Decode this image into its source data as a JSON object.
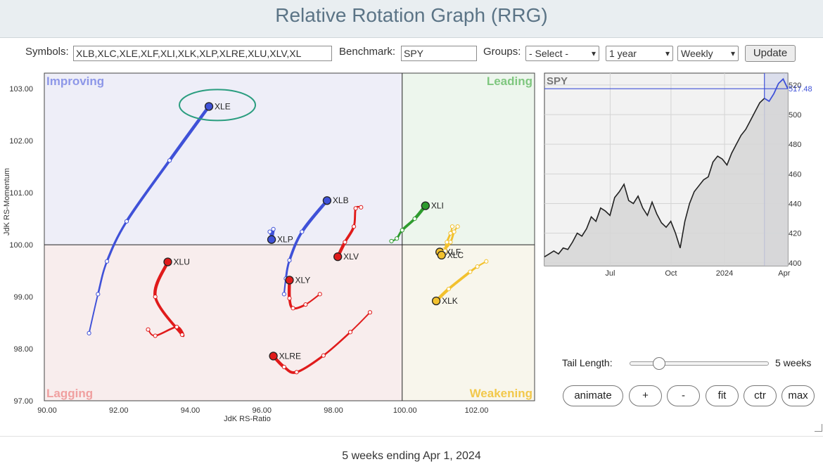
{
  "title": "Relative Rotation Graph (RRG)",
  "controls": {
    "symbols_label": "Symbols:",
    "symbols_value": "XLB,XLC,XLE,XLF,XLI,XLK,XLP,XLRE,XLU,XLV,XL",
    "benchmark_label": "Benchmark:",
    "benchmark_value": "SPY",
    "groups_label": "Groups:",
    "groups_value": "- Select -",
    "period_value": "1 year",
    "interval_value": "Weekly",
    "update_label": "Update"
  },
  "footer": "5 weeks ending Apr 1, 2024",
  "tail": {
    "label": "Tail Length:",
    "value": "5 weeks",
    "min": 1,
    "max": 52,
    "current": 5
  },
  "buttons": [
    "animate",
    "+",
    "-",
    "fit",
    "ctr",
    "max"
  ],
  "colors": {
    "improving": "#eeeef8",
    "leading": "#edf6ed",
    "weakening": "#f8f6ec",
    "lagging": "#f8eded",
    "highlight_ellipse": "#2a9d7f"
  },
  "chart_data": [
    {
      "type": "scatter",
      "xlabel": "JdK RS-Ratio",
      "ylabel": "JdK RS-Momentum",
      "xlim": [
        90,
        103.7
      ],
      "ylim": [
        97,
        103.3
      ],
      "quadrants": {
        "top_left": "Improving",
        "top_right": "Leading",
        "bottom_right": "Weakening",
        "bottom_left": "Lagging"
      },
      "xticks": [
        "90.00",
        "92.00",
        "94.00",
        "96.00",
        "98.00",
        "100.00",
        "102.00"
      ],
      "yticks": [
        "97.00",
        "98.00",
        "99.00",
        "100.00",
        "101.00",
        "102.00",
        "103.00"
      ],
      "highlighted": "XLE",
      "series": [
        {
          "name": "XLE",
          "color": "#3f51d8",
          "points": [
            [
              91.25,
              98.3
            ],
            [
              91.5,
              99.05
            ],
            [
              91.75,
              99.68
            ],
            [
              92.3,
              100.45
            ],
            [
              93.5,
              101.62
            ],
            [
              94.6,
              102.66
            ]
          ]
        },
        {
          "name": "XLB",
          "color": "#3f51d8",
          "points": [
            [
              96.7,
              99.05
            ],
            [
              96.75,
              99.35
            ],
            [
              96.85,
              99.7
            ],
            [
              97.2,
              100.25
            ],
            [
              97.9,
              100.85
            ]
          ]
        },
        {
          "name": "XLP",
          "color": "#3f51d8",
          "points": [
            [
              96.3,
              100.25
            ],
            [
              96.35,
              100.15
            ],
            [
              96.4,
              100.3
            ],
            [
              96.35,
              100.1
            ]
          ]
        },
        {
          "name": "XLU",
          "color": "#e01b1b",
          "points": [
            [
              92.9,
              98.37
            ],
            [
              93.1,
              98.25
            ],
            [
              93.7,
              98.42
            ],
            [
              93.85,
              98.27
            ],
            [
              93.1,
              99.0
            ],
            [
              93.45,
              99.67
            ]
          ]
        },
        {
          "name": "XLY",
          "color": "#e01b1b",
          "points": [
            [
              97.7,
              99.05
            ],
            [
              97.3,
              98.85
            ],
            [
              96.95,
              98.78
            ],
            [
              96.85,
              98.97
            ],
            [
              96.85,
              99.32
            ]
          ]
        },
        {
          "name": "XLV",
          "color": "#e01b1b",
          "points": [
            [
              98.85,
              100.72
            ],
            [
              98.7,
              100.7
            ],
            [
              98.65,
              100.35
            ],
            [
              98.4,
              100.05
            ],
            [
              98.2,
              99.77
            ]
          ]
        },
        {
          "name": "XLRE",
          "color": "#e01b1b",
          "points": [
            [
              99.1,
              98.7
            ],
            [
              98.55,
              98.32
            ],
            [
              97.8,
              97.87
            ],
            [
              97.05,
              97.55
            ],
            [
              96.7,
              97.65
            ],
            [
              96.4,
              97.86
            ]
          ]
        },
        {
          "name": "XLI",
          "color": "#2e9b2e",
          "points": [
            [
              99.7,
              100.07
            ],
            [
              99.85,
              100.12
            ],
            [
              100.0,
              100.28
            ],
            [
              100.35,
              100.5
            ],
            [
              100.65,
              100.75
            ]
          ]
        },
        {
          "name": "XLF",
          "color": "#f2c12e",
          "points": [
            [
              101.55,
              100.35
            ],
            [
              101.45,
              100.25
            ],
            [
              101.35,
              100.05
            ],
            [
              101.15,
              99.9
            ],
            [
              101.05,
              99.86
            ]
          ]
        },
        {
          "name": "XLC",
          "color": "#f2c12e",
          "points": [
            [
              101.4,
              100.35
            ],
            [
              101.35,
              100.22
            ],
            [
              101.25,
              100.05
            ],
            [
              101.2,
              99.88
            ],
            [
              101.1,
              99.8
            ]
          ]
        },
        {
          "name": "XLK",
          "color": "#f2c12e",
          "points": [
            [
              102.35,
              99.68
            ],
            [
              102.1,
              99.58
            ],
            [
              101.9,
              99.48
            ],
            [
              101.3,
              99.15
            ],
            [
              100.95,
              98.92
            ]
          ]
        }
      ]
    },
    {
      "type": "area",
      "title": "SPY",
      "last_value_label": "517.48",
      "last_value": 517.48,
      "ylim": [
        398,
        528
      ],
      "yticks": [
        "400",
        "420",
        "440",
        "460",
        "480",
        "500",
        "520"
      ],
      "xticks": [
        "Jul",
        "Oct",
        "2024",
        "Apr"
      ],
      "values": [
        404,
        406,
        408,
        406,
        410,
        409,
        414,
        420,
        418,
        423,
        431,
        428,
        437,
        435,
        432,
        444,
        448,
        453,
        442,
        440,
        445,
        437,
        432,
        441,
        433,
        427,
        424,
        428,
        420,
        410,
        428,
        440,
        448,
        452,
        456,
        458,
        468,
        472,
        470,
        466,
        474,
        480,
        486,
        490,
        496,
        502,
        508,
        511,
        509,
        514,
        521,
        524,
        517.48
      ]
    }
  ]
}
